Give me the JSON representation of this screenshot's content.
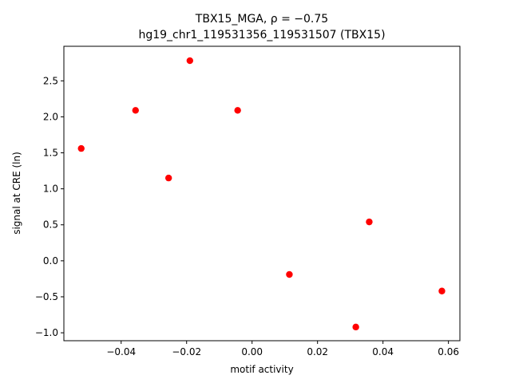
{
  "chart_data": {
    "type": "scatter",
    "title_line1": "TBX15_MGA, ρ = −0.75",
    "title_line2": "hg19_chr1_119531356_119531507 (TBX15)",
    "xlabel": "motif activity",
    "ylabel": "signal at CRE (ln)",
    "xlim": [
      -0.0575,
      0.0635
    ],
    "ylim": [
      -1.11,
      2.98
    ],
    "xticks": [
      -0.04,
      -0.02,
      0.0,
      0.02,
      0.04,
      0.06
    ],
    "xtick_labels": [
      "−0.04",
      "−0.02",
      "0.00",
      "0.02",
      "0.04",
      "0.06"
    ],
    "yticks": [
      -1.0,
      -0.5,
      0.0,
      0.5,
      1.0,
      1.5,
      2.0,
      2.5
    ],
    "ytick_labels": [
      "−1.0",
      "−0.5",
      "0.0",
      "0.5",
      "1.0",
      "1.5",
      "2.0",
      "2.5"
    ],
    "point_color": "#ff0000",
    "grid": false,
    "points": [
      {
        "x": -0.0522,
        "y": 1.56
      },
      {
        "x": -0.0356,
        "y": 2.09
      },
      {
        "x": -0.0255,
        "y": 1.15
      },
      {
        "x": -0.019,
        "y": 2.78
      },
      {
        "x": -0.0044,
        "y": 2.09
      },
      {
        "x": 0.0114,
        "y": -0.19
      },
      {
        "x": 0.0317,
        "y": -0.92
      },
      {
        "x": 0.0358,
        "y": 0.54
      },
      {
        "x": 0.058,
        "y": -0.42
      }
    ]
  }
}
